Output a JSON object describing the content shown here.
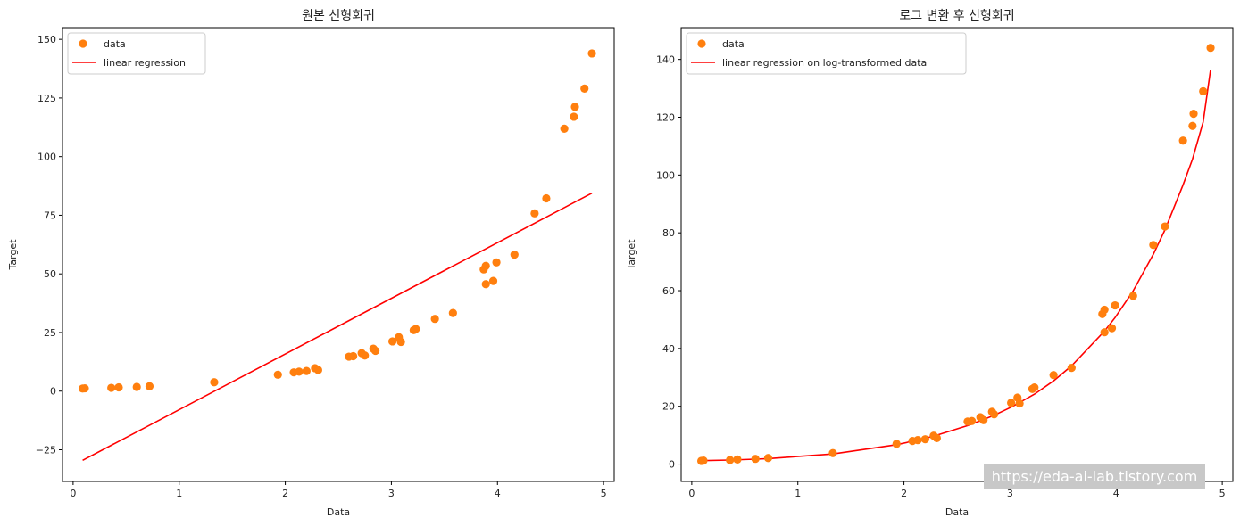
{
  "colors": {
    "data": "#ff7f0e",
    "line": "#ff0000",
    "axes": "#000000"
  },
  "watermark": "https://eda-ai-lab.tistory.com",
  "chart_data": [
    {
      "type": "scatter",
      "title": "원본 선형회귀",
      "xlabel": "Data",
      "ylabel": "Target",
      "xlim": [
        -0.1,
        5.1
      ],
      "ylim": [
        -38.5,
        155
      ],
      "xticks": [
        0,
        1,
        2,
        3,
        4,
        5
      ],
      "yticks": [
        -25,
        0,
        25,
        50,
        75,
        100,
        125,
        150
      ],
      "legend": {
        "position": "top-left",
        "entries": [
          "data",
          "linear regression"
        ]
      },
      "series": [
        {
          "name": "data",
          "kind": "scatter",
          "x": [
            0.09,
            0.11,
            0.36,
            0.43,
            0.6,
            0.72,
            1.33,
            1.93,
            2.08,
            2.13,
            2.2,
            2.28,
            2.31,
            2.6,
            2.64,
            2.72,
            2.75,
            2.83,
            2.85,
            3.01,
            3.07,
            3.09,
            3.21,
            3.23,
            3.41,
            3.58,
            3.87,
            3.89,
            3.89,
            3.96,
            3.99,
            4.16,
            4.35,
            4.46,
            4.63,
            4.72,
            4.73,
            4.82,
            4.89
          ],
          "y": [
            1.1,
            1.2,
            1.4,
            1.6,
            1.8,
            2.1,
            3.8,
            7.0,
            8.0,
            8.3,
            8.6,
            9.8,
            9.0,
            14.7,
            14.9,
            16.2,
            15.2,
            18.1,
            17.2,
            21.2,
            23.0,
            21.0,
            26.0,
            26.5,
            30.8,
            33.3,
            51.9,
            53.4,
            45.6,
            47.0,
            54.9,
            58.2,
            75.8,
            82.2,
            111.9,
            117.0,
            121.2,
            129.0,
            144.0
          ]
        },
        {
          "name": "linear regression",
          "kind": "line",
          "x": [
            0.09,
            4.89
          ],
          "y": [
            -29.5,
            84.4
          ]
        }
      ]
    },
    {
      "type": "scatter",
      "title": "로그 변환 후 선형회귀",
      "xlabel": "Data",
      "ylabel": "Target",
      "xlim": [
        -0.1,
        5.1
      ],
      "ylim": [
        -6,
        151
      ],
      "xticks": [
        0,
        1,
        2,
        3,
        4,
        5
      ],
      "yticks": [
        0,
        20,
        40,
        60,
        80,
        100,
        120,
        140
      ],
      "legend": {
        "position": "top-left",
        "entries": [
          "data",
          "linear regression on log-transformed data"
        ]
      },
      "series": [
        {
          "name": "data",
          "kind": "scatter",
          "x": [
            0.09,
            0.11,
            0.36,
            0.43,
            0.6,
            0.72,
            1.33,
            1.93,
            2.08,
            2.13,
            2.2,
            2.28,
            2.31,
            2.6,
            2.64,
            2.72,
            2.75,
            2.83,
            2.85,
            3.01,
            3.07,
            3.09,
            3.21,
            3.23,
            3.41,
            3.58,
            3.87,
            3.89,
            3.89,
            3.96,
            3.99,
            4.16,
            4.35,
            4.46,
            4.63,
            4.72,
            4.73,
            4.82,
            4.89
          ],
          "y": [
            1.1,
            1.2,
            1.4,
            1.6,
            1.8,
            2.1,
            3.8,
            7.0,
            8.0,
            8.3,
            8.6,
            9.8,
            9.0,
            14.7,
            14.9,
            16.2,
            15.2,
            18.1,
            17.2,
            21.2,
            23.0,
            21.0,
            26.0,
            26.5,
            30.8,
            33.3,
            51.9,
            53.4,
            45.6,
            47.0,
            54.9,
            58.2,
            75.8,
            82.2,
            111.9,
            117.0,
            121.2,
            129.0,
            144.0
          ]
        },
        {
          "name": "linear regression on log-transformed data",
          "kind": "line",
          "x": [
            0.09,
            0.36,
            0.6,
            0.72,
            1.33,
            1.93,
            2.08,
            2.2,
            2.31,
            2.6,
            2.75,
            2.85,
            3.01,
            3.09,
            3.23,
            3.41,
            3.58,
            3.89,
            3.99,
            4.16,
            4.35,
            4.46,
            4.63,
            4.72,
            4.82,
            4.89
          ],
          "y": [
            1.2,
            1.4,
            1.7,
            1.9,
            3.5,
            6.7,
            7.9,
            8.9,
            10.0,
            13.3,
            15.4,
            16.9,
            19.7,
            21.3,
            24.2,
            28.8,
            34.0,
            46.0,
            50.7,
            59.9,
            72.6,
            81.0,
            96.5,
            105.5,
            118.3,
            136.4
          ]
        }
      ]
    }
  ]
}
